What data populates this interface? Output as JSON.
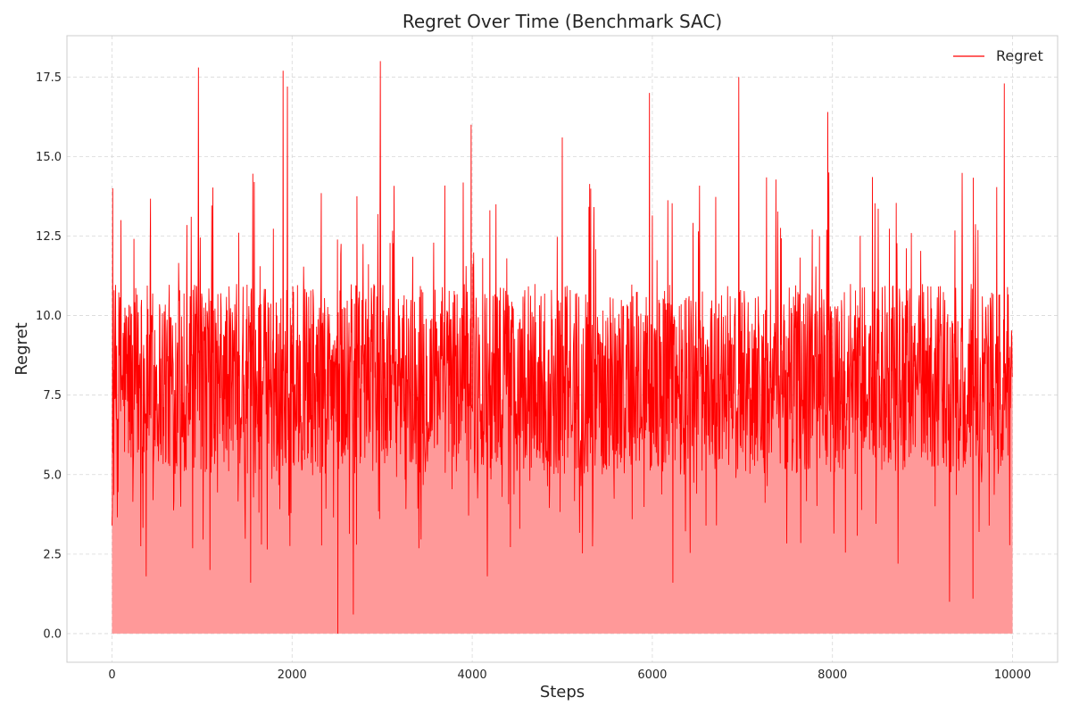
{
  "chart_data": {
    "type": "area",
    "title": "Regret Over Time (Benchmark SAC)",
    "xlabel": "Steps",
    "ylabel": "Regret",
    "xlim": [
      -500,
      10500
    ],
    "ylim": [
      -0.9,
      18.8
    ],
    "x_ticks": [
      0,
      2000,
      4000,
      6000,
      8000,
      10000
    ],
    "x_tick_labels": [
      "0",
      "2000",
      "4000",
      "6000",
      "8000",
      "10000"
    ],
    "y_ticks": [
      0.0,
      2.5,
      5.0,
      7.5,
      10.0,
      12.5,
      15.0,
      17.5
    ],
    "y_tick_labels": [
      "0.0",
      "2.5",
      "5.0",
      "7.5",
      "10.0",
      "12.5",
      "15.0",
      "17.5"
    ],
    "grid": true,
    "legend_position": "top-right",
    "series": [
      {
        "name": "Regret",
        "color": "#ff0000",
        "fill_color": "#ff9999",
        "x_start": 0,
        "x_end": 10000,
        "sample_points": [
          [
            0,
            3.4
          ],
          [
            10,
            14.0
          ],
          [
            100,
            13.0
          ],
          [
            380,
            1.8
          ],
          [
            960,
            17.8
          ],
          [
            1090,
            2.0
          ],
          [
            1540,
            1.6
          ],
          [
            1900,
            17.7
          ],
          [
            1950,
            17.2
          ],
          [
            2510,
            0.0
          ],
          [
            2680,
            0.6
          ],
          [
            2980,
            18.0
          ],
          [
            3990,
            16.0
          ],
          [
            4170,
            1.8
          ],
          [
            5000,
            15.6
          ],
          [
            5970,
            17.0
          ],
          [
            6230,
            1.6
          ],
          [
            6960,
            17.5
          ],
          [
            7950,
            16.4
          ],
          [
            8730,
            2.2
          ],
          [
            9300,
            1.0
          ],
          [
            9560,
            1.1
          ],
          [
            9910,
            17.3
          ],
          [
            10000,
            8.1
          ]
        ],
        "typical_low": 5.0,
        "typical_high": 11.0
      }
    ]
  }
}
